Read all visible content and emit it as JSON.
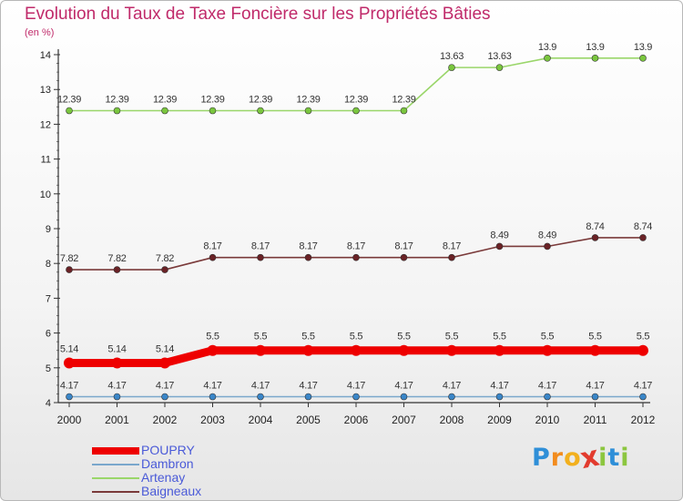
{
  "chart_data": {
    "type": "line",
    "title": "Evolution du Taux de Taxe Foncière sur les Propriétés Bâties",
    "unit_label": "(en %)",
    "xlabel": "",
    "ylabel": "(en %)",
    "x": [
      "2000",
      "2001",
      "2002",
      "2003",
      "2004",
      "2005",
      "2006",
      "2007",
      "2008",
      "2009",
      "2010",
      "2011",
      "2012"
    ],
    "ylim": [
      4,
      14
    ],
    "yticks": [
      "4",
      "5",
      "6",
      "7",
      "8",
      "9",
      "10",
      "11",
      "12",
      "13",
      "14"
    ],
    "grid": false,
    "legend_position": "bottom-left",
    "series": [
      {
        "name": "Dambron",
        "color": "#7aa7cc",
        "marker_color": "#3a86c8",
        "values": [
          4.17,
          4.17,
          4.17,
          4.17,
          4.17,
          4.17,
          4.17,
          4.17,
          4.17,
          4.17,
          4.17,
          4.17,
          4.17
        ],
        "labels": [
          "4.17",
          "4.17",
          "4.17",
          "4.17",
          "4.17",
          "4.17",
          "4.17",
          "4.17",
          "4.17",
          "4.17",
          "4.17",
          "4.17",
          "4.17"
        ]
      },
      {
        "name": "Baigneaux",
        "color": "#7a3a3a",
        "marker_color": "#6a2226",
        "values": [
          7.82,
          7.82,
          7.82,
          8.17,
          8.17,
          8.17,
          8.17,
          8.17,
          8.17,
          8.49,
          8.49,
          8.74,
          8.74
        ],
        "labels": [
          "7.82",
          "7.82",
          "7.82",
          "8.17",
          "8.17",
          "8.17",
          "8.17",
          "8.17",
          "8.17",
          "8.49",
          "8.49",
          "8.74",
          "8.74"
        ]
      },
      {
        "name": "Artenay",
        "color": "#9ad66a",
        "marker_color": "#7ac63e",
        "values": [
          12.39,
          12.39,
          12.39,
          12.39,
          12.39,
          12.39,
          12.39,
          12.39,
          13.63,
          13.63,
          13.9,
          13.9,
          13.9
        ],
        "labels": [
          "12.39",
          "12.39",
          "12.39",
          "12.39",
          "12.39",
          "12.39",
          "12.39",
          "12.39",
          "13.63",
          "13.63",
          "13.9",
          "13.9",
          "13.9"
        ]
      },
      {
        "name": "POUPRY",
        "color": "#ee0000",
        "marker_color": "#ee0000",
        "values": [
          5.14,
          5.14,
          5.14,
          5.5,
          5.5,
          5.5,
          5.5,
          5.5,
          5.5,
          5.5,
          5.5,
          5.5,
          5.5
        ],
        "labels": [
          "5.14",
          "5.14",
          "5.14",
          "5.5",
          "5.5",
          "5.5",
          "5.5",
          "5.5",
          "5.5",
          "5.5",
          "5.5",
          "5.5",
          "5.5"
        ]
      }
    ],
    "legend": [
      {
        "name": "POUPRY",
        "color": "#ee0000"
      },
      {
        "name": "Dambron",
        "color": "#7aa7cc"
      },
      {
        "name": "Artenay",
        "color": "#9ad66a"
      },
      {
        "name": "Baigneaux",
        "color": "#7a3a3a"
      }
    ]
  },
  "brand": {
    "letters": [
      "P",
      "r",
      "o",
      "x",
      "i",
      "t",
      "i"
    ],
    "colors": [
      "#2f8fd8",
      "#f28c1e",
      "#f2b01e",
      "#e23b2e",
      "#8cc63f",
      "#2f8fd8",
      "#8cc63f"
    ]
  }
}
